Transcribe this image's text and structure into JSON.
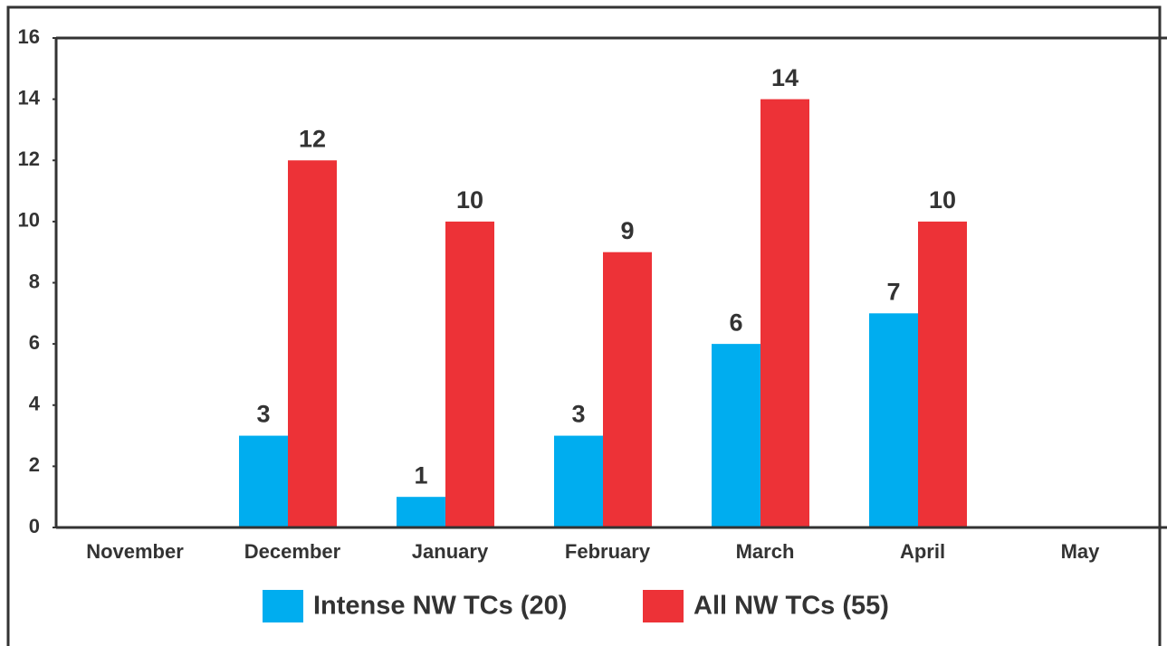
{
  "chart_data": {
    "type": "bar",
    "categories": [
      "November",
      "December",
      "January",
      "February",
      "March",
      "April",
      "May"
    ],
    "series": [
      {
        "name": "Intense NW TCs (20)",
        "color": "#00adef",
        "values": [
          null,
          3,
          1,
          3,
          6,
          7,
          null
        ]
      },
      {
        "name": "All NW TCs (55)",
        "color": "#ed3237",
        "values": [
          null,
          12,
          10,
          9,
          14,
          10,
          null
        ]
      }
    ],
    "ylim": [
      0,
      16
    ],
    "yticks": [
      0,
      2,
      4,
      6,
      8,
      10,
      12,
      14,
      16
    ],
    "grid": false,
    "legend": "bottom"
  }
}
